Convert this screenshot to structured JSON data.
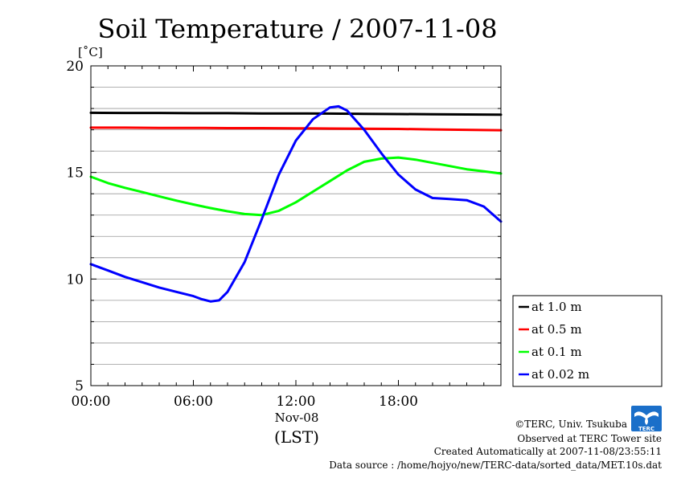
{
  "chart_data": {
    "type": "line",
    "title": "Soil Temperature / 2007-11-08",
    "ylabel": "[˚C]",
    "xlabel": "(LST)",
    "x_date_label": "Nov-08",
    "ylim": [
      5,
      20
    ],
    "xlim": [
      0,
      24
    ],
    "yticks": [
      {
        "value": 5,
        "label": "5"
      },
      {
        "value": 10,
        "label": "10"
      },
      {
        "value": 15,
        "label": "15"
      },
      {
        "value": 20,
        "label": "20"
      }
    ],
    "xticks": [
      {
        "value": 0,
        "label": "00:00"
      },
      {
        "value": 6,
        "label": "06:00"
      },
      {
        "value": 12,
        "label": "12:00"
      },
      {
        "value": 18,
        "label": "18:00"
      }
    ],
    "grid": true,
    "legend_position": "bottom-right",
    "series": [
      {
        "name": "at 1.0 m",
        "color": "#000000",
        "x": [
          0,
          2,
          4,
          6,
          8,
          10,
          12,
          14,
          16,
          18,
          20,
          22,
          24
        ],
        "values": [
          17.8,
          17.79,
          17.79,
          17.78,
          17.78,
          17.77,
          17.77,
          17.76,
          17.75,
          17.74,
          17.73,
          17.72,
          17.71
        ]
      },
      {
        "name": "at 0.5 m",
        "color": "#ff0000",
        "x": [
          0,
          2,
          4,
          6,
          8,
          10,
          12,
          14,
          16,
          18,
          20,
          22,
          24
        ],
        "values": [
          17.1,
          17.1,
          17.09,
          17.09,
          17.08,
          17.08,
          17.07,
          17.06,
          17.05,
          17.04,
          17.02,
          17.0,
          16.98
        ]
      },
      {
        "name": "at 0.1 m",
        "color": "#00ff00",
        "x": [
          0,
          1,
          2,
          3,
          4,
          5,
          6,
          7,
          8,
          9,
          10,
          11,
          12,
          13,
          14,
          15,
          16,
          17,
          18,
          19,
          20,
          21,
          22,
          23,
          24
        ],
        "values": [
          14.8,
          14.5,
          14.28,
          14.08,
          13.88,
          13.68,
          13.5,
          13.33,
          13.18,
          13.05,
          13.0,
          13.2,
          13.6,
          14.1,
          14.6,
          15.1,
          15.5,
          15.65,
          15.7,
          15.6,
          15.45,
          15.3,
          15.15,
          15.05,
          14.95
        ]
      },
      {
        "name": "at 0.02 m",
        "color": "#0000ff",
        "x": [
          0,
          1,
          2,
          3,
          4,
          5,
          6,
          6.5,
          7,
          7.5,
          8,
          9,
          10,
          11,
          12,
          13,
          14,
          14.5,
          15,
          16,
          17,
          18,
          19,
          20,
          21,
          22,
          23,
          24
        ],
        "values": [
          10.7,
          10.4,
          10.1,
          9.85,
          9.6,
          9.4,
          9.2,
          9.05,
          8.95,
          9.0,
          9.4,
          10.8,
          12.8,
          14.9,
          16.5,
          17.5,
          18.05,
          18.1,
          17.9,
          17.0,
          15.9,
          14.9,
          14.2,
          13.8,
          13.75,
          13.7,
          13.4,
          12.7
        ]
      }
    ]
  },
  "footer": {
    "copyright": "©TERC, Univ. Tsukuba",
    "observed": "Observed at TERC Tower site",
    "created": "Created Automatically at 2007-11-08/23:55:11",
    "source": "Data source : /home/hojyo/new/TERC-data/sorted_data/MET.10s.dat",
    "logo_text": "TERC"
  }
}
